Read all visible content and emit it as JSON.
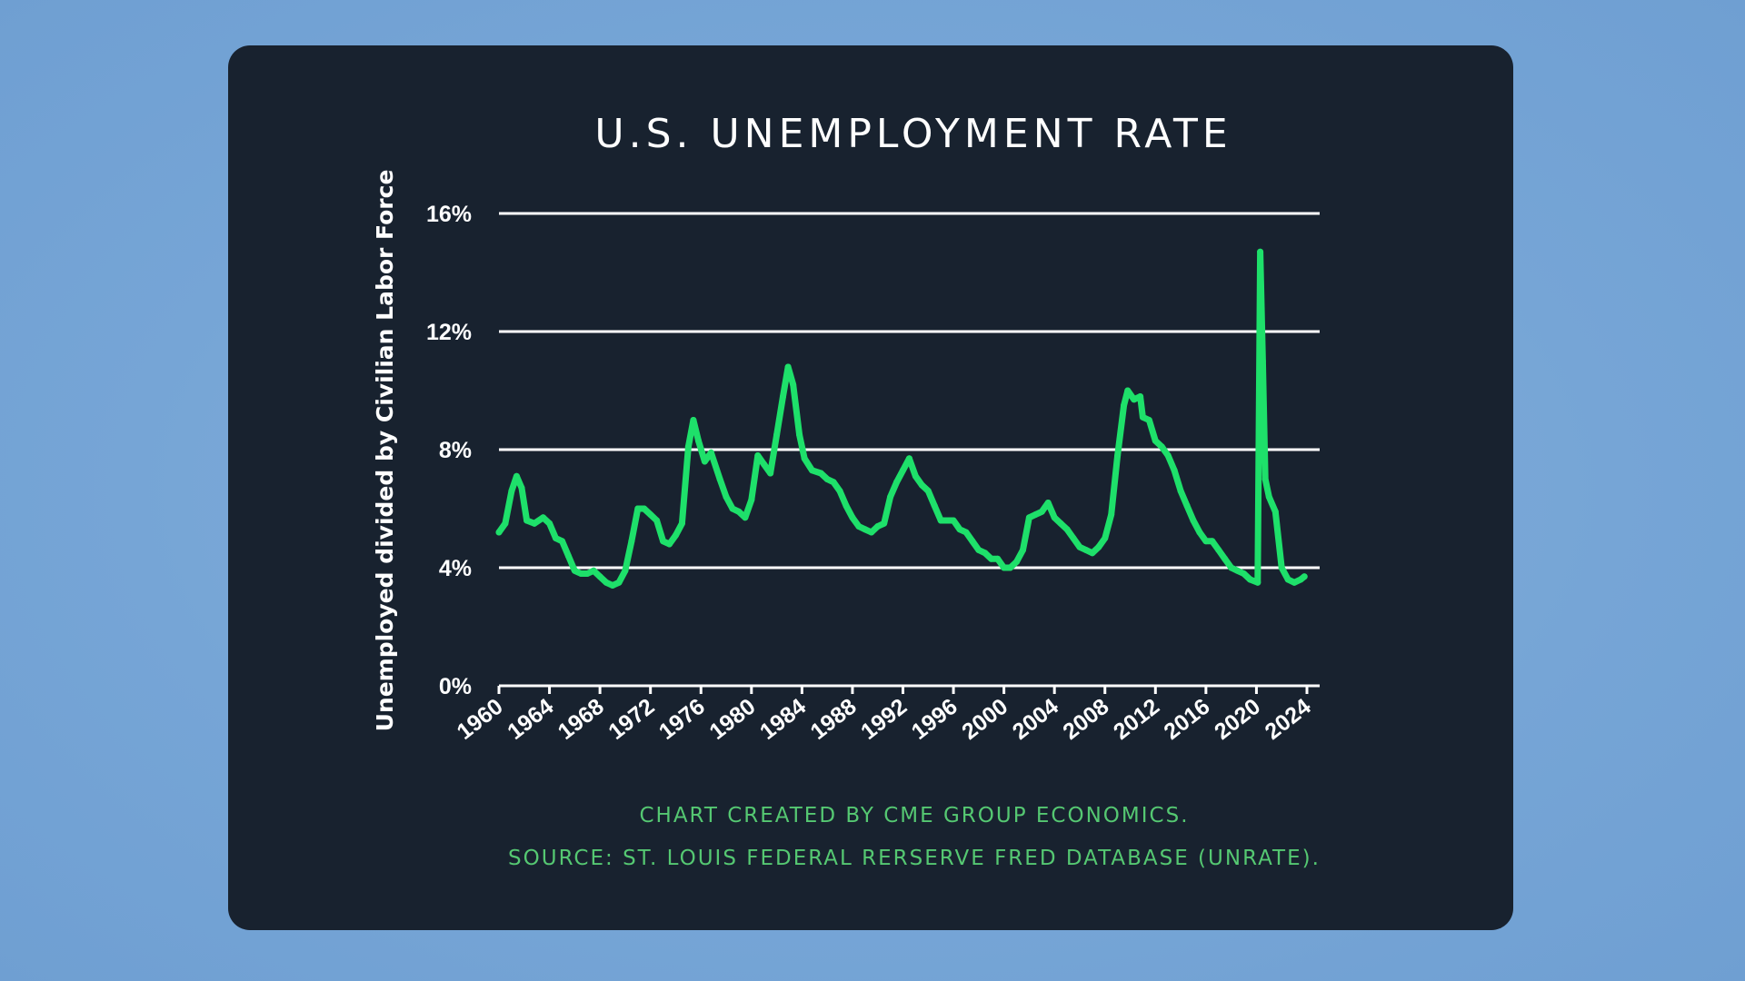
{
  "chart_data": {
    "type": "line",
    "title": "U.S. UNEMPLOYMENT RATE",
    "ylabel": "Unemployed divided by Civilian Labor Force",
    "xlabel": "",
    "ylim": [
      0,
      16
    ],
    "xlim": [
      1960,
      2024
    ],
    "y_ticks": [
      "0%",
      "4%",
      "8%",
      "12%",
      "16%"
    ],
    "y_tick_values": [
      0,
      4,
      8,
      12,
      16
    ],
    "x_ticks": [
      "1960",
      "1964",
      "1968",
      "1972",
      "1976",
      "1980",
      "1984",
      "1988",
      "1992",
      "1996",
      "2000",
      "2004",
      "2008",
      "2012",
      "2016",
      "2020",
      "2024"
    ],
    "grid": true,
    "line_color": "#1ee06a",
    "series": [
      {
        "x": [
          1960.0,
          1960.5,
          1961.0,
          1961.4,
          1961.8,
          1962.2,
          1962.8,
          1963.5,
          1964.0,
          1964.5,
          1965.0,
          1965.5,
          1966.0,
          1966.5,
          1967.0,
          1967.5,
          1968.0,
          1968.5,
          1969.0,
          1969.5,
          1970.0,
          1970.5,
          1971.0,
          1971.5,
          1972.0,
          1972.5,
          1973.0,
          1973.5,
          1974.0,
          1974.5,
          1975.0,
          1975.4,
          1975.8,
          1976.3,
          1976.8,
          1977.5,
          1978.0,
          1978.5,
          1979.0,
          1979.5,
          1980.0,
          1980.5,
          1981.0,
          1981.5,
          1982.0,
          1982.5,
          1982.9,
          1983.3,
          1983.8,
          1984.2,
          1984.8,
          1985.5,
          1986.0,
          1986.5,
          1987.0,
          1987.5,
          1988.0,
          1988.5,
          1989.0,
          1989.5,
          1990.0,
          1990.5,
          1991.0,
          1991.5,
          1992.0,
          1992.5,
          1993.0,
          1993.5,
          1994.0,
          1994.5,
          1995.0,
          1995.5,
          1996.0,
          1996.5,
          1997.0,
          1997.5,
          1998.0,
          1998.5,
          1999.0,
          1999.5,
          2000.0,
          2000.5,
          2001.0,
          2001.5,
          2002.0,
          2002.5,
          2003.0,
          2003.5,
          2004.0,
          2004.5,
          2005.0,
          2005.5,
          2006.0,
          2006.5,
          2007.0,
          2007.5,
          2008.0,
          2008.5,
          2009.0,
          2009.5,
          2009.8,
          2010.3,
          2010.8,
          2011.0,
          2011.5,
          2012.0,
          2012.5,
          2013.0,
          2013.5,
          2014.0,
          2014.5,
          2015.0,
          2015.5,
          2016.0,
          2016.5,
          2017.0,
          2017.5,
          2018.0,
          2018.5,
          2019.0,
          2019.5,
          2020.1,
          2020.3,
          2020.5,
          2020.7,
          2021.0,
          2021.5,
          2022.0,
          2022.5,
          2023.0,
          2023.5,
          2023.8
        ],
        "y": [
          5.2,
          5.5,
          6.6,
          7.1,
          6.7,
          5.6,
          5.5,
          5.7,
          5.5,
          5.0,
          4.9,
          4.4,
          3.9,
          3.8,
          3.8,
          3.9,
          3.7,
          3.5,
          3.4,
          3.5,
          3.9,
          4.9,
          6.0,
          6.0,
          5.8,
          5.6,
          4.9,
          4.8,
          5.1,
          5.5,
          8.1,
          9.0,
          8.3,
          7.6,
          7.9,
          7.0,
          6.4,
          6.0,
          5.9,
          5.7,
          6.3,
          7.8,
          7.5,
          7.2,
          8.5,
          9.8,
          10.8,
          10.2,
          8.5,
          7.7,
          7.3,
          7.2,
          7.0,
          6.9,
          6.6,
          6.1,
          5.7,
          5.4,
          5.3,
          5.2,
          5.4,
          5.5,
          6.4,
          6.9,
          7.3,
          7.7,
          7.1,
          6.8,
          6.6,
          6.1,
          5.6,
          5.6,
          5.6,
          5.3,
          5.2,
          4.9,
          4.6,
          4.5,
          4.3,
          4.3,
          4.0,
          4.0,
          4.2,
          4.6,
          5.7,
          5.8,
          5.9,
          6.2,
          5.7,
          5.5,
          5.3,
          5.0,
          4.7,
          4.6,
          4.5,
          4.7,
          5.0,
          5.8,
          7.8,
          9.5,
          10.0,
          9.7,
          9.8,
          9.1,
          9.0,
          8.3,
          8.1,
          7.8,
          7.3,
          6.6,
          6.1,
          5.6,
          5.2,
          4.9,
          4.9,
          4.6,
          4.3,
          4.0,
          3.9,
          3.8,
          3.6,
          3.5,
          14.7,
          11.0,
          7.0,
          6.4,
          5.9,
          4.0,
          3.6,
          3.5,
          3.6,
          3.7
        ]
      }
    ]
  },
  "footer": {
    "credit": "CHART CREATED BY CME GROUP ECONOMICS.",
    "source": "SOURCE:  ST. LOUIS FEDERAL RERSERVE FRED DATABASE (UNRATE)."
  }
}
